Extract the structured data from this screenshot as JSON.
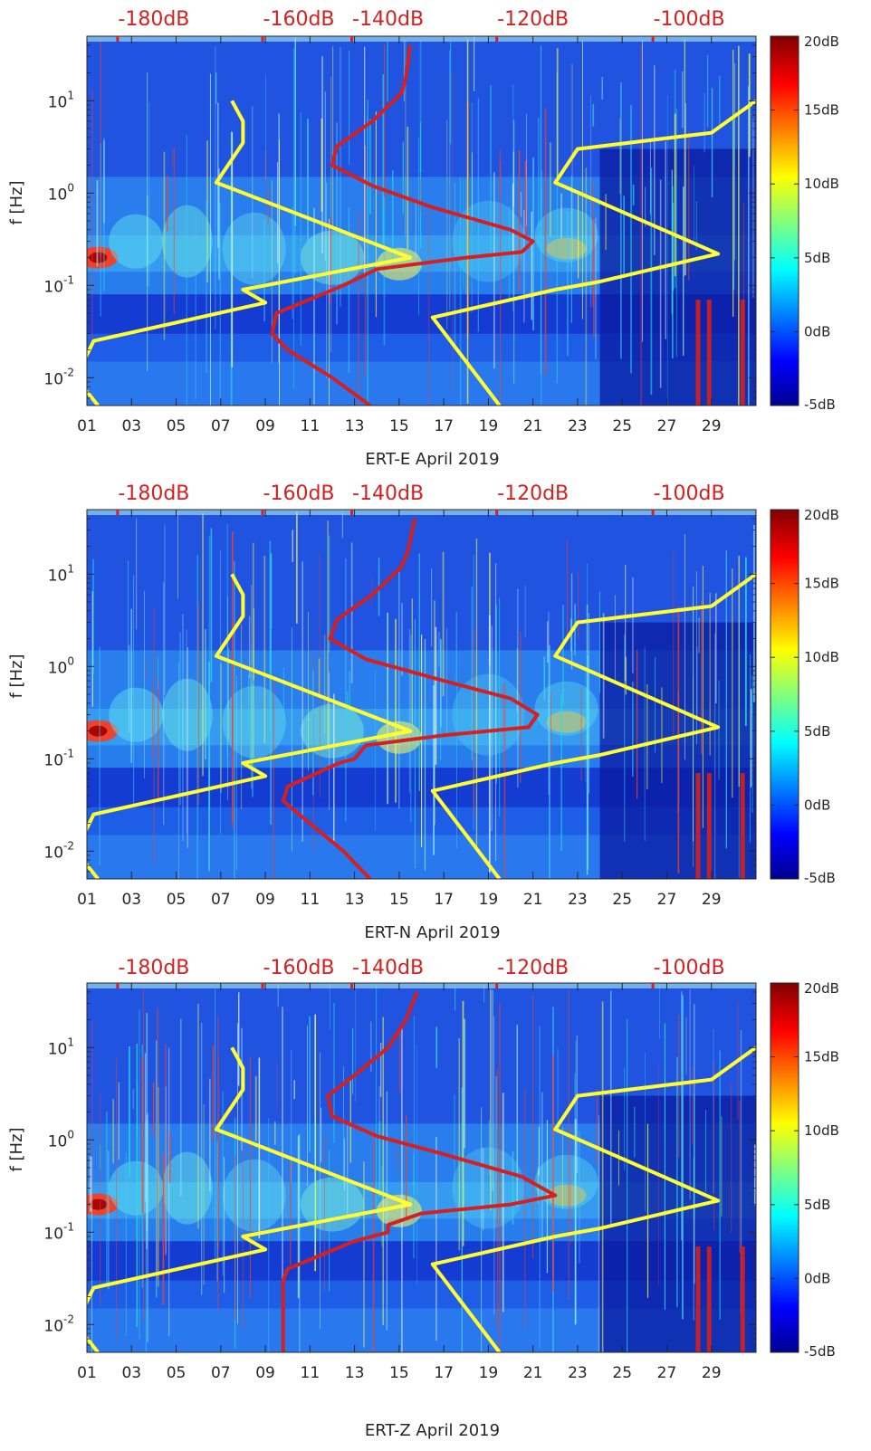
{
  "chart_data": [
    {
      "type": "heatmap",
      "title": "",
      "xlabel": "ERT-E April 2019",
      "ylabel": "f [Hz]",
      "x_tick_labels": [
        "01",
        "03",
        "05",
        "07",
        "09",
        "11",
        "13",
        "15",
        "17",
        "19",
        "21",
        "23",
        "25",
        "27",
        "29"
      ],
      "x_tick_days": [
        1,
        3,
        5,
        7,
        9,
        11,
        13,
        15,
        17,
        19,
        21,
        23,
        25,
        27,
        29
      ],
      "xlim": [
        1,
        31
      ],
      "yscale": "log",
      "ylim": [
        0.005,
        50
      ],
      "y_ticks": [
        {
          "value": 0.01,
          "base": "10",
          "exp": "-2"
        },
        {
          "value": 0.1,
          "base": "10",
          "exp": "-1"
        },
        {
          "value": 1,
          "base": "10",
          "exp": "0"
        },
        {
          "value": 10,
          "base": "10",
          "exp": "1"
        }
      ],
      "top_axis_labels": [
        "-180dB",
        "-160dB",
        "-140dB",
        "-120dB",
        "-100dB"
      ],
      "top_axis_days": [
        4,
        10.5,
        14.5,
        21,
        28
      ],
      "colorbar": {
        "labels": [
          "20dB",
          "15dB",
          "10dB",
          "5dB",
          "0dB",
          "-5dB"
        ],
        "values": [
          20,
          15,
          10,
          5,
          0,
          -5
        ],
        "range": [
          -5,
          20
        ]
      },
      "series": [
        {
          "name": "noise-model-low",
          "color": "#ffff33",
          "points": [
            [
              7.5,
              10
            ],
            [
              8,
              6
            ],
            [
              8,
              3.5
            ],
            [
              6.8,
              1.3
            ],
            [
              15.5,
              0.2
            ],
            [
              8,
              0.09
            ],
            [
              9,
              0.065
            ],
            [
              1.3,
              0.025
            ],
            [
              0.5,
              0.01
            ],
            [
              1.5,
              0.005
            ]
          ]
        },
        {
          "name": "noise-model-high",
          "color": "#ffff33",
          "points": [
            [
              31,
              10
            ],
            [
              29,
              4.5
            ],
            [
              23,
              3
            ],
            [
              22,
              1.3
            ],
            [
              29.3,
              0.22
            ],
            [
              24,
              0.11
            ],
            [
              22,
              0.09
            ],
            [
              16.5,
              0.045
            ],
            [
              19.5,
              0.005
            ]
          ]
        },
        {
          "name": "median-psd",
          "color": "#d42020",
          "points": [
            [
              15.5,
              40
            ],
            [
              15.3,
              18
            ],
            [
              15.1,
              12
            ],
            [
              13.8,
              6
            ],
            [
              12.2,
              3.2
            ],
            [
              12,
              2
            ],
            [
              13.8,
              1.2
            ],
            [
              16.5,
              0.7
            ],
            [
              20,
              0.4
            ],
            [
              21,
              0.3
            ],
            [
              20.5,
              0.23
            ],
            [
              18,
              0.2
            ],
            [
              14,
              0.15
            ],
            [
              12.5,
              0.1
            ],
            [
              9.5,
              0.05
            ],
            [
              9.3,
              0.03
            ],
            [
              10,
              0.02
            ],
            [
              12,
              0.01
            ],
            [
              13.7,
              0.005
            ]
          ]
        }
      ]
    },
    {
      "type": "heatmap",
      "title": "",
      "xlabel": "ERT-N April 2019",
      "ylabel": "f [Hz]",
      "x_tick_labels": [
        "01",
        "03",
        "05",
        "07",
        "09",
        "11",
        "13",
        "15",
        "17",
        "19",
        "21",
        "23",
        "25",
        "27",
        "29"
      ],
      "x_tick_days": [
        1,
        3,
        5,
        7,
        9,
        11,
        13,
        15,
        17,
        19,
        21,
        23,
        25,
        27,
        29
      ],
      "xlim": [
        1,
        31
      ],
      "yscale": "log",
      "ylim": [
        0.005,
        50
      ],
      "y_ticks": [
        {
          "value": 0.01,
          "base": "10",
          "exp": "-2"
        },
        {
          "value": 0.1,
          "base": "10",
          "exp": "-1"
        },
        {
          "value": 1,
          "base": "10",
          "exp": "0"
        },
        {
          "value": 10,
          "base": "10",
          "exp": "1"
        }
      ],
      "top_axis_labels": [
        "-180dB",
        "-160dB",
        "-140dB",
        "-120dB",
        "-100dB"
      ],
      "top_axis_days": [
        4,
        10.5,
        14.5,
        21,
        28
      ],
      "colorbar": {
        "labels": [
          "20dB",
          "15dB",
          "10dB",
          "5dB",
          "0dB",
          "-5dB"
        ],
        "values": [
          20,
          15,
          10,
          5,
          0,
          -5
        ],
        "range": [
          -5,
          20
        ]
      },
      "series": [
        {
          "name": "noise-model-low",
          "color": "#ffff33",
          "points": [
            [
              7.5,
              10
            ],
            [
              8,
              6
            ],
            [
              8,
              3.5
            ],
            [
              6.8,
              1.3
            ],
            [
              15.5,
              0.2
            ],
            [
              8,
              0.09
            ],
            [
              9,
              0.065
            ],
            [
              1.3,
              0.025
            ],
            [
              0.5,
              0.01
            ],
            [
              1.5,
              0.005
            ]
          ]
        },
        {
          "name": "noise-model-high",
          "color": "#ffff33",
          "points": [
            [
              31,
              10
            ],
            [
              29,
              4.5
            ],
            [
              23,
              3
            ],
            [
              22,
              1.3
            ],
            [
              29.3,
              0.22
            ],
            [
              24,
              0.11
            ],
            [
              22,
              0.09
            ],
            [
              16.5,
              0.045
            ],
            [
              19.5,
              0.005
            ]
          ]
        },
        {
          "name": "median-psd",
          "color": "#d42020",
          "points": [
            [
              15.7,
              40
            ],
            [
              15.4,
              18
            ],
            [
              15.1,
              12
            ],
            [
              13.8,
              6
            ],
            [
              12.2,
              3.2
            ],
            [
              11.9,
              2
            ],
            [
              13.5,
              1.2
            ],
            [
              17,
              0.7
            ],
            [
              20,
              0.45
            ],
            [
              21.2,
              0.3
            ],
            [
              20.8,
              0.22
            ],
            [
              17,
              0.18
            ],
            [
              13.5,
              0.14
            ],
            [
              13,
              0.1
            ],
            [
              12.3,
              0.09
            ],
            [
              10,
              0.05
            ],
            [
              9.8,
              0.035
            ],
            [
              11,
              0.02
            ],
            [
              12.5,
              0.01
            ],
            [
              13.7,
              0.005
            ]
          ]
        }
      ]
    },
    {
      "type": "heatmap",
      "title": "",
      "xlabel": "ERT-Z April 2019",
      "ylabel": "f [Hz]",
      "x_tick_labels": [
        "01",
        "03",
        "05",
        "07",
        "09",
        "11",
        "13",
        "15",
        "17",
        "19",
        "21",
        "23",
        "25",
        "27",
        "29"
      ],
      "x_tick_days": [
        1,
        3,
        5,
        7,
        9,
        11,
        13,
        15,
        17,
        19,
        21,
        23,
        25,
        27,
        29
      ],
      "xlim": [
        1,
        31
      ],
      "yscale": "log",
      "ylim": [
        0.005,
        50
      ],
      "y_ticks": [
        {
          "value": 0.01,
          "base": "10",
          "exp": "-2"
        },
        {
          "value": 0.1,
          "base": "10",
          "exp": "-1"
        },
        {
          "value": 1,
          "base": "10",
          "exp": "0"
        },
        {
          "value": 10,
          "base": "10",
          "exp": "1"
        }
      ],
      "top_axis_labels": [
        "-180dB",
        "-160dB",
        "-140dB",
        "-120dB",
        "-100dB"
      ],
      "top_axis_days": [
        4,
        10.5,
        14.5,
        21,
        28
      ],
      "colorbar": {
        "labels": [
          "20dB",
          "15dB",
          "10dB",
          "5dB",
          "0dB",
          "-5dB"
        ],
        "values": [
          20,
          15,
          10,
          5,
          0,
          -5
        ],
        "range": [
          -5,
          20
        ]
      },
      "series": [
        {
          "name": "noise-model-low",
          "color": "#ffff33",
          "points": [
            [
              7.5,
              10
            ],
            [
              8,
              6
            ],
            [
              8,
              3.5
            ],
            [
              6.8,
              1.3
            ],
            [
              15.5,
              0.2
            ],
            [
              8,
              0.09
            ],
            [
              9,
              0.065
            ],
            [
              1.3,
              0.025
            ],
            [
              0.5,
              0.01
            ],
            [
              1.5,
              0.005
            ]
          ]
        },
        {
          "name": "noise-model-high",
          "color": "#ffff33",
          "points": [
            [
              31,
              10
            ],
            [
              29,
              4.5
            ],
            [
              23,
              3
            ],
            [
              22,
              1.3
            ],
            [
              29.3,
              0.22
            ],
            [
              24,
              0.11
            ],
            [
              22,
              0.09
            ],
            [
              16.5,
              0.045
            ],
            [
              19.5,
              0.005
            ]
          ]
        },
        {
          "name": "median-psd",
          "color": "#d42020",
          "points": [
            [
              15.8,
              40
            ],
            [
              15.3,
              20
            ],
            [
              14.5,
              10
            ],
            [
              13,
              5
            ],
            [
              11.8,
              3
            ],
            [
              12,
              1.8
            ],
            [
              14,
              1.1
            ],
            [
              17,
              0.7
            ],
            [
              20.5,
              0.4
            ],
            [
              22,
              0.25
            ],
            [
              20,
              0.2
            ],
            [
              16,
              0.16
            ],
            [
              14.5,
              0.12
            ],
            [
              14.5,
              0.1
            ],
            [
              13,
              0.08
            ],
            [
              10,
              0.04
            ],
            [
              9.8,
              0.03
            ],
            [
              9.8,
              0.02
            ],
            [
              9.8,
              0.005
            ]
          ]
        }
      ]
    }
  ]
}
